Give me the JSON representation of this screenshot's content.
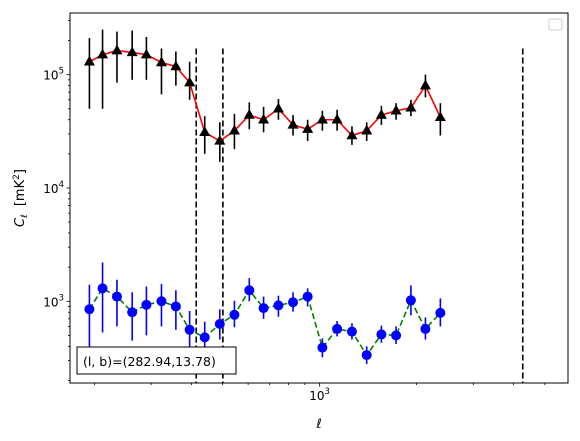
{
  "chart_data": {
    "type": "line",
    "xlabel": "ℓ",
    "ylabel_main": "C",
    "ylabel_sub": "ℓ",
    "ylabel_unit_open": "[mK",
    "ylabel_unit_exp": "2",
    "ylabel_unit_close": "]",
    "xscale": "log",
    "yscale": "log",
    "xlim": [
      168,
      5900
    ],
    "ylim": [
      190,
      350000
    ],
    "x_ticks": [
      {
        "value": 1000,
        "base": "10",
        "exp": "3"
      }
    ],
    "y_ticks": [
      {
        "value": 1000,
        "base": "10",
        "exp": "3"
      },
      {
        "value": 10000,
        "base": "10",
        "exp": "4"
      },
      {
        "value": 100000,
        "base": "10",
        "exp": "5"
      }
    ],
    "vlines": [
      414,
      501,
      4270
    ],
    "annotation": "(l, b)=(282.94,13.78)",
    "legend": {
      "position": "top-right",
      "entries": []
    },
    "series": [
      {
        "color": "#ff0000",
        "marker": "triangle",
        "marker_color": "#000000",
        "errorbar_color": "#000000",
        "linestyle": "solid",
        "points": [
          {
            "x": 193,
            "y": 130000,
            "lo": 50000,
            "hi": 210000
          },
          {
            "x": 212,
            "y": 150000,
            "lo": 50000,
            "hi": 250000
          },
          {
            "x": 235,
            "y": 163000,
            "lo": 85000,
            "hi": 240000
          },
          {
            "x": 262,
            "y": 157000,
            "lo": 90000,
            "hi": 245000
          },
          {
            "x": 290,
            "y": 150000,
            "lo": 90000,
            "hi": 215000
          },
          {
            "x": 323,
            "y": 128000,
            "lo": 67000,
            "hi": 170000
          },
          {
            "x": 358,
            "y": 118000,
            "lo": 80000,
            "hi": 160000
          },
          {
            "x": 395,
            "y": 85000,
            "lo": 60000,
            "hi": 130000
          },
          {
            "x": 440,
            "y": 31000,
            "lo": 20000,
            "hi": 43000
          },
          {
            "x": 490,
            "y": 26000,
            "lo": 17000,
            "hi": 38000
          },
          {
            "x": 544,
            "y": 32000,
            "lo": 22000,
            "hi": 45000
          },
          {
            "x": 605,
            "y": 44000,
            "lo": 33000,
            "hi": 57000
          },
          {
            "x": 670,
            "y": 40000,
            "lo": 31000,
            "hi": 52000
          },
          {
            "x": 745,
            "y": 50000,
            "lo": 40000,
            "hi": 61000
          },
          {
            "x": 827,
            "y": 36000,
            "lo": 29000,
            "hi": 44000
          },
          {
            "x": 918,
            "y": 33000,
            "lo": 26000,
            "hi": 40000
          },
          {
            "x": 1020,
            "y": 40000,
            "lo": 32000,
            "hi": 48000
          },
          {
            "x": 1133,
            "y": 40000,
            "lo": 32000,
            "hi": 49000
          },
          {
            "x": 1260,
            "y": 29000,
            "lo": 24000,
            "hi": 35000
          },
          {
            "x": 1400,
            "y": 32000,
            "lo": 26000,
            "hi": 38000
          },
          {
            "x": 1555,
            "y": 44000,
            "lo": 36000,
            "hi": 53000
          },
          {
            "x": 1727,
            "y": 48000,
            "lo": 40000,
            "hi": 56000
          },
          {
            "x": 1920,
            "y": 51000,
            "lo": 43000,
            "hi": 60000
          },
          {
            "x": 2130,
            "y": 80000,
            "lo": 63000,
            "hi": 100000
          },
          {
            "x": 2370,
            "y": 42000,
            "lo": 29000,
            "hi": 56000
          }
        ]
      },
      {
        "color": "#008000",
        "marker": "circle",
        "marker_color": "#0000ff",
        "errorbar_color": "#0000ff",
        "linestyle": "dashed",
        "points": [
          {
            "x": 193,
            "y": 850,
            "lo": 400,
            "hi": 1400
          },
          {
            "x": 212,
            "y": 1300,
            "lo": 530,
            "hi": 2200
          },
          {
            "x": 235,
            "y": 1100,
            "lo": 600,
            "hi": 1550
          },
          {
            "x": 262,
            "y": 800,
            "lo": 450,
            "hi": 1200
          },
          {
            "x": 290,
            "y": 930,
            "lo": 500,
            "hi": 1350
          },
          {
            "x": 323,
            "y": 1000,
            "lo": 600,
            "hi": 1420
          },
          {
            "x": 358,
            "y": 900,
            "lo": 560,
            "hi": 1250
          },
          {
            "x": 395,
            "y": 560,
            "lo": 380,
            "hi": 820
          },
          {
            "x": 440,
            "y": 480,
            "lo": 330,
            "hi": 660
          },
          {
            "x": 490,
            "y": 630,
            "lo": 460,
            "hi": 850
          },
          {
            "x": 544,
            "y": 760,
            "lo": 590,
            "hi": 1010
          },
          {
            "x": 605,
            "y": 1250,
            "lo": 1000,
            "hi": 1600
          },
          {
            "x": 670,
            "y": 870,
            "lo": 700,
            "hi": 1100
          },
          {
            "x": 745,
            "y": 920,
            "lo": 730,
            "hi": 1120
          },
          {
            "x": 827,
            "y": 980,
            "lo": 810,
            "hi": 1200
          },
          {
            "x": 918,
            "y": 1100,
            "lo": 900,
            "hi": 1300
          },
          {
            "x": 1020,
            "y": 390,
            "lo": 320,
            "hi": 470
          },
          {
            "x": 1133,
            "y": 570,
            "lo": 490,
            "hi": 670
          },
          {
            "x": 1260,
            "y": 540,
            "lo": 460,
            "hi": 640
          },
          {
            "x": 1400,
            "y": 335,
            "lo": 280,
            "hi": 400
          },
          {
            "x": 1555,
            "y": 510,
            "lo": 430,
            "hi": 610
          },
          {
            "x": 1727,
            "y": 500,
            "lo": 420,
            "hi": 600
          },
          {
            "x": 1920,
            "y": 1020,
            "lo": 750,
            "hi": 1380
          },
          {
            "x": 2130,
            "y": 570,
            "lo": 460,
            "hi": 720
          },
          {
            "x": 2370,
            "y": 790,
            "lo": 600,
            "hi": 1060
          }
        ]
      }
    ]
  }
}
